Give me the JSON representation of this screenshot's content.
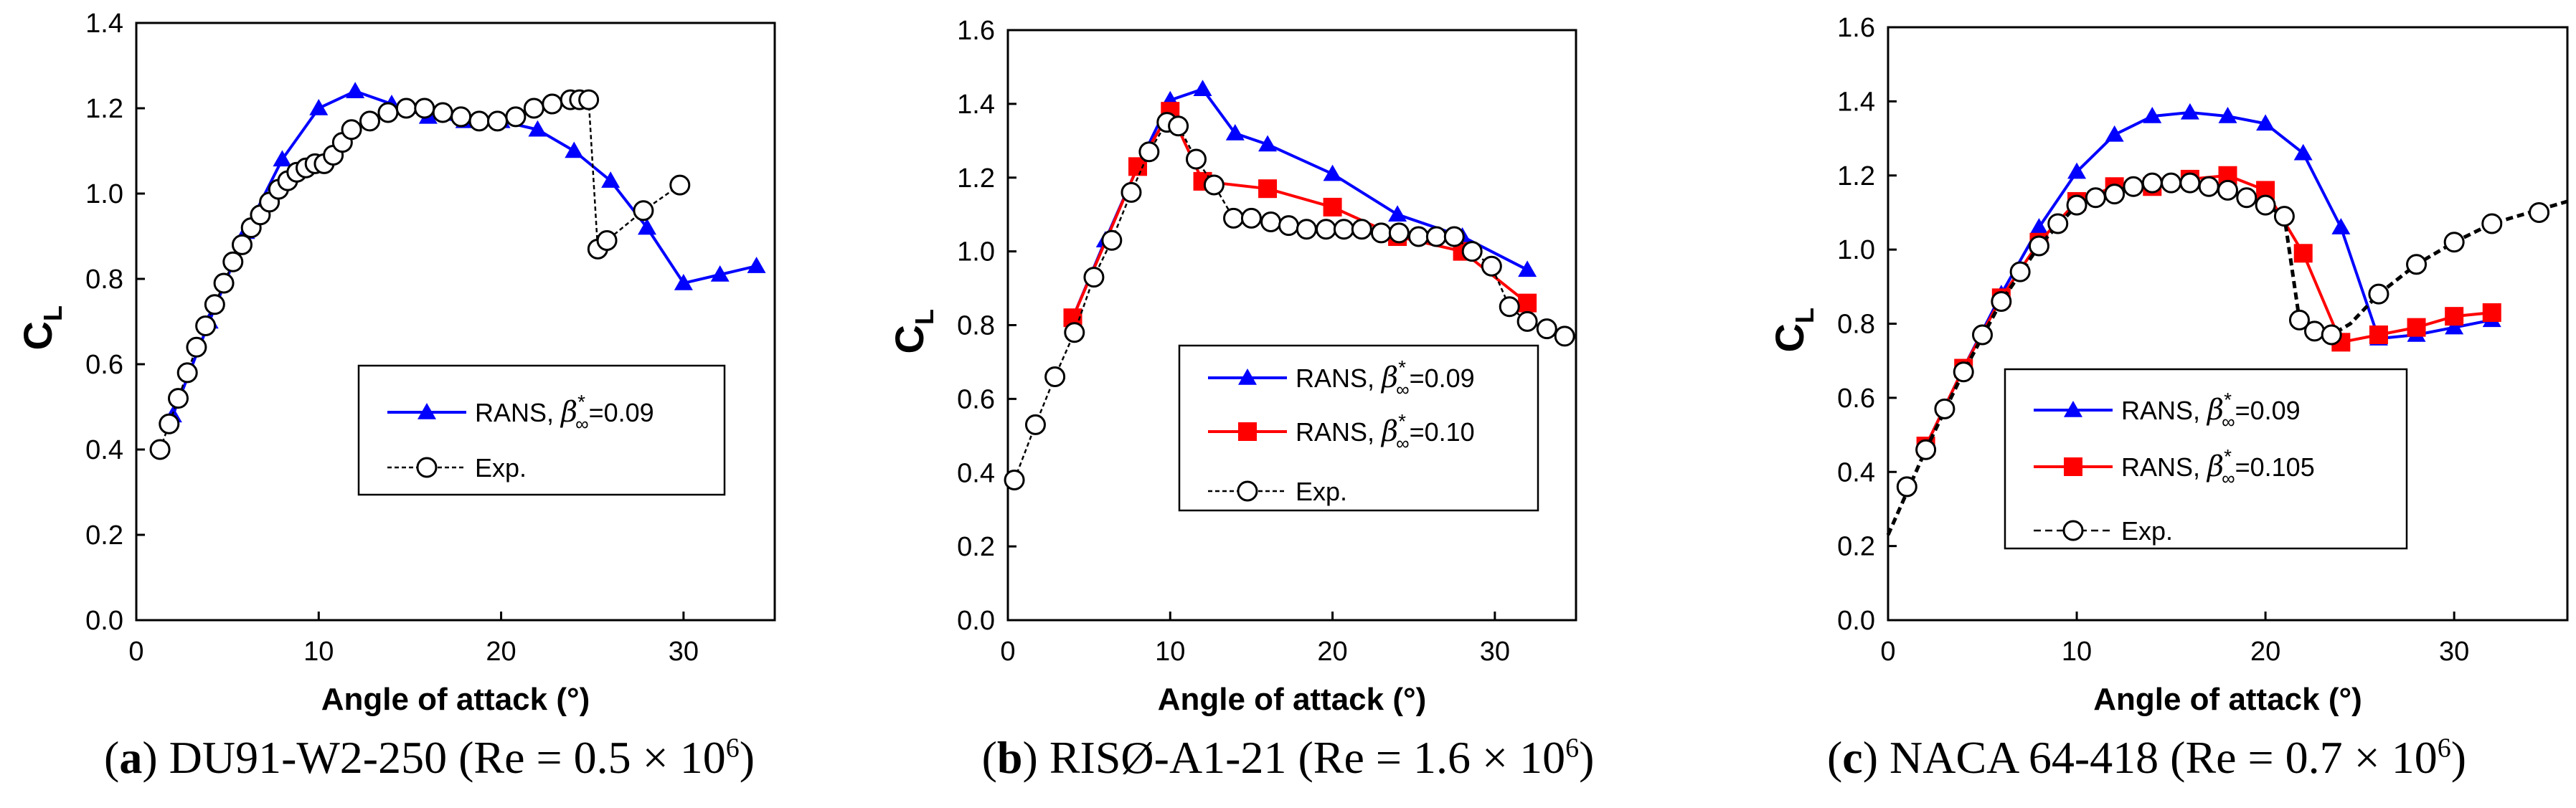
{
  "chart_data": [
    {
      "type": "line",
      "caption": {
        "letter": "a",
        "name": "DU91-W2-250",
        "re_text": "(Re = 0.5 × 10",
        "exp": "6",
        "close": ")"
      },
      "xlabel": "Angle of attack (°)",
      "ylabel": "C",
      "ylabel_sub": "L",
      "xlim": [
        0,
        35
      ],
      "ylim": [
        0,
        1.4
      ],
      "xticks": [
        "0",
        "10",
        "20",
        "30"
      ],
      "yticks": [
        "0.0",
        "0.2",
        "0.4",
        "0.6",
        "0.8",
        "1.0",
        "1.2",
        "1.4"
      ],
      "legend": [
        {
          "label_text": "RANS, ",
          "label_beta": "β",
          "label_sup": "*",
          "label_sub": "∞",
          "label_val": "=0.09"
        },
        {
          "label_text": "Exp."
        }
      ],
      "series": [
        {
          "name": "RANS, β*∞=0.09",
          "color": "#0000FF",
          "marker": "triangle",
          "dash": "none",
          "x": [
            2,
            4,
            6,
            8,
            10,
            12,
            14,
            16,
            18,
            20,
            22,
            24,
            26,
            28,
            30,
            32,
            34
          ],
          "y": [
            0.48,
            0.7,
            0.91,
            1.08,
            1.2,
            1.24,
            1.21,
            1.18,
            1.17,
            1.17,
            1.15,
            1.1,
            1.03,
            0.92,
            0.79,
            0.81,
            0.83
          ]
        },
        {
          "name": "Exp.",
          "color": "#000000",
          "marker": "open-circle",
          "dash": "6,4",
          "x": [
            1.3,
            1.8,
            2.3,
            2.8,
            3.3,
            3.8,
            4.3,
            4.8,
            5.3,
            5.8,
            6.3,
            6.8,
            7.3,
            7.8,
            8.3,
            8.8,
            9.3,
            9.8,
            10.3,
            10.8,
            11.3,
            11.8,
            12.8,
            13.8,
            14.8,
            15.8,
            16.8,
            17.8,
            18.8,
            19.8,
            20.8,
            21.8,
            22.8,
            23.8,
            24.3,
            24.8,
            25.3,
            25.8,
            27.8,
            29.8
          ],
          "y": [
            0.4,
            0.46,
            0.52,
            0.58,
            0.64,
            0.69,
            0.74,
            0.79,
            0.84,
            0.88,
            0.92,
            0.95,
            0.98,
            1.01,
            1.03,
            1.05,
            1.06,
            1.07,
            1.07,
            1.09,
            1.12,
            1.15,
            1.17,
            1.19,
            1.2,
            1.2,
            1.19,
            1.18,
            1.17,
            1.17,
            1.18,
            1.2,
            1.21,
            1.22,
            1.22,
            1.22,
            0.87,
            0.89,
            0.96,
            1.02
          ]
        }
      ]
    },
    {
      "type": "line",
      "caption": {
        "letter": "b",
        "name": "RISØ-A1-21",
        "re_text": "(Re = 1.6 × 10",
        "exp": "6",
        "close": ")"
      },
      "xlabel": "Angle of attack (°)",
      "ylabel": "C",
      "ylabel_sub": "L",
      "xlim": [
        0,
        35
      ],
      "ylim": [
        0,
        1.6
      ],
      "xticks": [
        "0",
        "10",
        "20",
        "30"
      ],
      "yticks": [
        "0.0",
        "0.2",
        "0.4",
        "0.6",
        "0.8",
        "1.0",
        "1.2",
        "1.4",
        "1.6"
      ],
      "legend": [
        {
          "label_text": "RANS, ",
          "label_beta": "β",
          "label_sup": "*",
          "label_sub": "∞",
          "label_val": "=0.09"
        },
        {
          "label_text": "RANS, ",
          "label_beta": "β",
          "label_sup": "*",
          "label_sub": "∞",
          "label_val": "=0.10"
        },
        {
          "label_text": "Exp."
        }
      ],
      "series": [
        {
          "name": "RANS, β*∞=0.09",
          "color": "#0000FF",
          "marker": "triangle",
          "dash": "none",
          "x": [
            4,
            6,
            8,
            10,
            12,
            14,
            16,
            20,
            24,
            28,
            32
          ],
          "y": [
            0.82,
            1.03,
            1.23,
            1.41,
            1.44,
            1.32,
            1.29,
            1.21,
            1.1,
            1.04,
            0.95
          ]
        },
        {
          "name": "RANS, β*∞=0.10",
          "color": "#FF0000",
          "marker": "square",
          "dash": "none",
          "x": [
            4,
            8,
            10,
            12,
            16,
            20,
            24,
            28,
            32
          ],
          "y": [
            0.82,
            1.23,
            1.38,
            1.19,
            1.17,
            1.12,
            1.04,
            1.0,
            0.86
          ]
        },
        {
          "name": "Exp.",
          "color": "#000000",
          "marker": "open-circle",
          "dash": "6,4",
          "x": [
            0.4,
            1.7,
            2.9,
            4.1,
            5.3,
            6.4,
            7.6,
            8.7,
            9.8,
            10.5,
            11.6,
            12.7,
            13.9,
            15.0,
            16.2,
            17.3,
            18.4,
            19.6,
            20.7,
            21.8,
            23.0,
            24.1,
            25.3,
            26.4,
            27.5,
            28.6,
            29.8,
            30.9,
            32.0,
            33.2,
            34.3
          ],
          "y": [
            0.38,
            0.53,
            0.66,
            0.78,
            0.93,
            1.03,
            1.16,
            1.27,
            1.35,
            1.34,
            1.25,
            1.18,
            1.09,
            1.09,
            1.08,
            1.07,
            1.06,
            1.06,
            1.06,
            1.06,
            1.05,
            1.05,
            1.04,
            1.04,
            1.04,
            1.0,
            0.96,
            0.85,
            0.81,
            0.79,
            0.77
          ]
        }
      ]
    },
    {
      "type": "line",
      "caption": {
        "letter": "c",
        "name": "NACA 64-418",
        "re_text": "(Re = 0.7 × 10",
        "exp": "6",
        "close": ")"
      },
      "xlabel": "Angle of attack (°)",
      "ylabel": "C",
      "ylabel_sub": "L",
      "xlim": [
        0,
        36
      ],
      "ylim": [
        0,
        1.6
      ],
      "xticks": [
        "0",
        "10",
        "20",
        "30"
      ],
      "yticks": [
        "0.0",
        "0.2",
        "0.4",
        "0.6",
        "0.8",
        "1.0",
        "1.2",
        "1.4",
        "1.6"
      ],
      "legend": [
        {
          "label_text": "RANS,  ",
          "label_beta": "β",
          "label_sup": "*",
          "label_sub": "∞",
          "label_val": "=0.09"
        },
        {
          "label_text": "RANS,  ",
          "label_beta": "β",
          "label_sup": "*",
          "label_sub": "∞",
          "label_val": "=0.105"
        },
        {
          "label_text": "Exp."
        }
      ],
      "series": [
        {
          "name": "RANS, β*∞=0.09",
          "color": "#0000FF",
          "marker": "triangle",
          "dash": "none",
          "x": [
            2,
            4,
            6,
            8,
            10,
            12,
            14,
            16,
            18,
            20,
            22,
            24,
            26,
            28,
            30,
            32
          ],
          "y": [
            0.47,
            0.68,
            0.88,
            1.06,
            1.21,
            1.31,
            1.36,
            1.37,
            1.36,
            1.34,
            1.26,
            1.06,
            0.76,
            0.77,
            0.79,
            0.81
          ]
        },
        {
          "name": "RANS, β*∞=0.105",
          "color": "#FF0000",
          "marker": "square",
          "dash": "none",
          "x": [
            2,
            4,
            6,
            8,
            10,
            12,
            14,
            16,
            18,
            20,
            22,
            24,
            26,
            28,
            30,
            32
          ],
          "y": [
            0.47,
            0.68,
            0.87,
            1.02,
            1.13,
            1.17,
            1.17,
            1.19,
            1.2,
            1.16,
            0.99,
            0.75,
            0.77,
            0.79,
            0.82,
            0.83
          ]
        },
        {
          "name": "Exp.",
          "color": "#000000",
          "marker": "open-circle",
          "dash": "10,6",
          "curve_x": [
            0,
            2,
            4,
            6,
            8,
            10,
            12,
            14,
            16,
            18,
            20,
            21,
            21.8,
            22.6,
            23.5,
            24.5,
            26,
            28,
            30,
            32,
            34,
            36
          ],
          "curve_y": [
            0.23,
            0.46,
            0.67,
            0.86,
            1.01,
            1.12,
            1.16,
            1.18,
            1.18,
            1.16,
            1.12,
            1.09,
            0.81,
            0.78,
            0.77,
            0.8,
            0.88,
            0.96,
            1.02,
            1.07,
            1.1,
            1.13
          ],
          "x": [
            1,
            2,
            3,
            4,
            5,
            6,
            7,
            8,
            9,
            10,
            11,
            12,
            13,
            14,
            15,
            16,
            17,
            18,
            19,
            20,
            21,
            21.8,
            22.6,
            23.5,
            26,
            28,
            30,
            32,
            34.5
          ],
          "y": [
            0.36,
            0.46,
            0.57,
            0.67,
            0.77,
            0.86,
            0.94,
            1.01,
            1.07,
            1.12,
            1.14,
            1.15,
            1.17,
            1.18,
            1.18,
            1.18,
            1.17,
            1.16,
            1.14,
            1.12,
            1.09,
            0.81,
            0.78,
            0.77,
            0.88,
            0.96,
            1.02,
            1.07,
            1.1
          ]
        }
      ]
    }
  ]
}
